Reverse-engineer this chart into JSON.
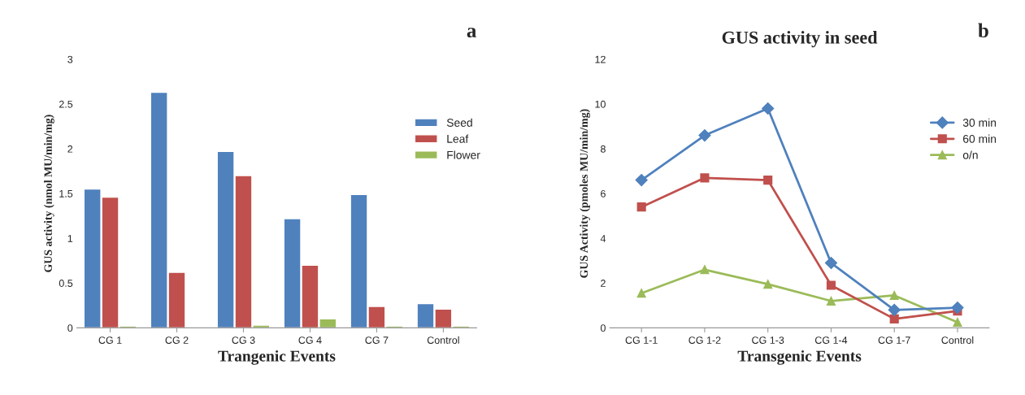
{
  "chart_data": [
    {
      "type": "bar",
      "annotations": [
        "a"
      ],
      "ylabel": "GUS activity (nmol MU/min/mg)",
      "xlabel": "Trangenic Events",
      "categories": [
        "CG 1",
        "CG 2",
        "CG 3",
        "CG 4",
        "CG 7",
        "Control"
      ],
      "series": [
        {
          "name": "Seed",
          "color": "#4f81bd",
          "values": [
            1.55,
            2.63,
            1.97,
            1.22,
            1.49,
            0.27
          ]
        },
        {
          "name": "Leaf",
          "color": "#c0504d",
          "values": [
            1.46,
            0.62,
            1.7,
            0.7,
            0.24,
            0.21
          ]
        },
        {
          "name": "Flower",
          "color": "#9bbb59",
          "values": [
            0.02,
            null,
            0.03,
            0.1,
            0.02,
            0.02
          ]
        }
      ],
      "ylim": [
        0,
        3
      ],
      "yticks": [
        0,
        0.5,
        1,
        1.5,
        2,
        2.5,
        3
      ],
      "legend": "right",
      "grid": false
    },
    {
      "type": "line",
      "title": "GUS activity in seed",
      "annotations": [
        "b"
      ],
      "ylabel": "GUS Activity (pmoles MU/min/mg)",
      "xlabel": "Transgenic Events",
      "categories": [
        "CG 1-1",
        "CG 1-2",
        "CG 1-3",
        "CG 1-4",
        "CG 1-7",
        "Control"
      ],
      "series": [
        {
          "name": "30 min",
          "color": "#4f81bd",
          "marker": "diamond",
          "values": [
            6.6,
            8.6,
            9.8,
            2.9,
            0.8,
            0.9
          ]
        },
        {
          "name": "60 min",
          "color": "#c0504d",
          "marker": "square",
          "values": [
            5.4,
            6.7,
            6.6,
            1.9,
            0.4,
            0.75
          ]
        },
        {
          "name": "o/n",
          "color": "#9bbb59",
          "marker": "triangle",
          "values": [
            1.55,
            2.6,
            1.95,
            1.2,
            1.45,
            0.25
          ]
        }
      ],
      "ylim": [
        0,
        12
      ],
      "yticks": [
        0,
        2,
        4,
        6,
        8,
        10,
        12
      ],
      "legend": "right",
      "grid": false
    }
  ]
}
